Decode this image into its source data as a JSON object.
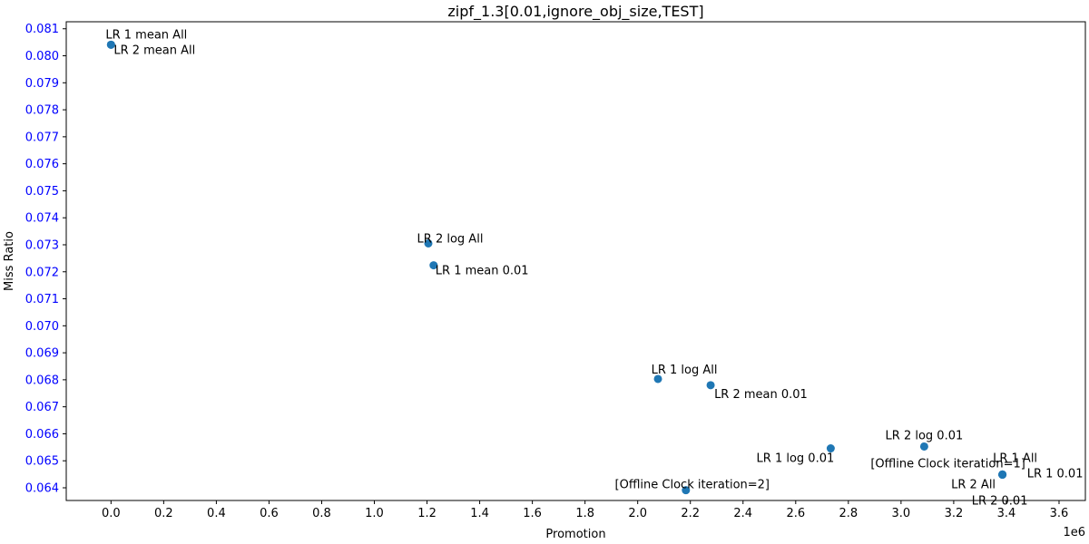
{
  "chart_data": {
    "type": "scatter",
    "title": "zipf_1.3[0.01,ignore_obj_size,TEST]",
    "xlabel": "Promotion",
    "ylabel": "Miss Ratio",
    "x_offset_label": "1e6",
    "xlim": [
      -170000,
      3700000
    ],
    "ylim": [
      0.06353,
      0.08126
    ],
    "x_ticks": [
      0,
      200000,
      400000,
      600000,
      800000,
      1000000,
      1200000,
      1400000,
      1600000,
      1800000,
      2000000,
      2200000,
      2400000,
      2600000,
      2800000,
      3000000,
      3200000,
      3400000,
      3600000
    ],
    "x_tick_labels": [
      "0.0",
      "0.2",
      "0.4",
      "0.6",
      "0.8",
      "1.0",
      "1.2",
      "1.4",
      "1.6",
      "1.8",
      "2.0",
      "2.2",
      "2.4",
      "2.6",
      "2.8",
      "3.0",
      "3.2",
      "3.4",
      "3.6"
    ],
    "y_ticks": [
      0.064,
      0.065,
      0.066,
      0.067,
      0.068,
      0.069,
      0.07,
      0.071,
      0.072,
      0.073,
      0.074,
      0.075,
      0.076,
      0.077,
      0.078,
      0.079,
      0.08,
      0.081
    ],
    "y_tick_labels": [
      "0.064",
      "0.065",
      "0.066",
      "0.067",
      "0.068",
      "0.069",
      "0.070",
      "0.071",
      "0.072",
      "0.073",
      "0.074",
      "0.075",
      "0.076",
      "0.077",
      "0.078",
      "0.079",
      "0.080",
      "0.081"
    ],
    "grid": false,
    "colors": {
      "marker": "#1f77b4",
      "y_tick_text": "#0000ff",
      "axis": "#000000"
    },
    "points": [
      {
        "label": "LR 1 mean All",
        "x": 0,
        "y": 0.08041
      },
      {
        "label": "LR 2 mean All",
        "x": 0,
        "y": 0.08041
      },
      {
        "label": "LR 2 log All",
        "x": 1205000,
        "y": 0.07305
      },
      {
        "label": "LR 1 mean 0.01",
        "x": 1225000,
        "y": 0.07224
      },
      {
        "label": "LR 1 log All",
        "x": 2077000,
        "y": 0.06803
      },
      {
        "label": "LR 2 mean 0.01",
        "x": 2277000,
        "y": 0.0678
      },
      {
        "label": "LR 1 log 0.01",
        "x": 2733000,
        "y": 0.06546
      },
      {
        "label": "[Offline Clock iteration=2]",
        "x": 2183000,
        "y": 0.06391
      },
      {
        "label": "LR 2 log 0.01",
        "x": 3088000,
        "y": 0.06553
      },
      {
        "label": "[Offline Clock iteration=1]",
        "x": 3385000,
        "y": 0.06449
      },
      {
        "label": "LR 1 All",
        "x": 3385000,
        "y": 0.06449
      },
      {
        "label": "LR 2 All",
        "x": 3385000,
        "y": 0.06449
      },
      {
        "label": "LR 1 0.01",
        "x": 3385000,
        "y": 0.06449
      },
      {
        "label": "LR 2 0.01",
        "x": 3385000,
        "y": 0.06449
      }
    ]
  }
}
